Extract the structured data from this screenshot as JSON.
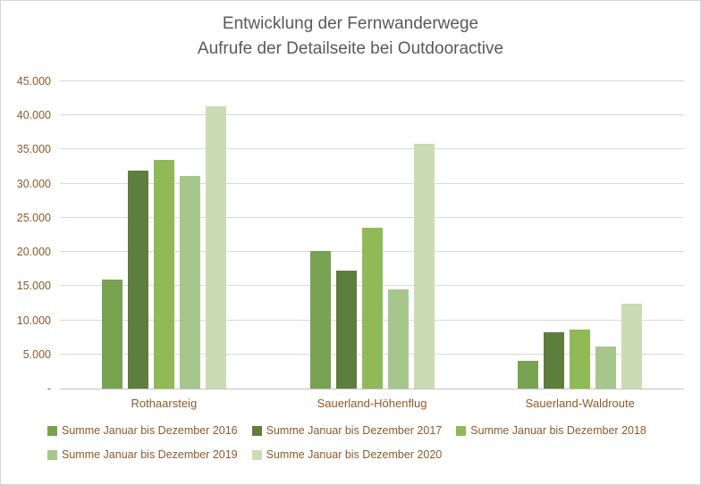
{
  "title": {
    "line1": "Entwicklung der Fernwanderwege",
    "line2": "Aufrufe der Detailseite bei Outdooractive"
  },
  "colors": {
    "title": "#595959",
    "axis_labels": "#8c5a2b",
    "gridlines": "#d9d9d9",
    "axis_line": "#bfbfbf",
    "chart_border": "#d6d6d6",
    "background": "#ffffff"
  },
  "chart_data": {
    "type": "bar",
    "title": "Entwicklung der Fernwanderwege Aufrufe der Detailseite bei Outdooractive",
    "categories": [
      "Rothaarsteig",
      "Sauerland-Höhenflug",
      "Sauerland-Waldroute"
    ],
    "series": [
      {
        "name": "Summe Januar bis Dezember 2016",
        "color": "#77a352",
        "values": [
          16000,
          20200,
          4100
        ]
      },
      {
        "name": "Summe Januar bis Dezember 2017",
        "color": "#5d7e3c",
        "values": [
          31900,
          17300,
          8300
        ]
      },
      {
        "name": "Summe Januar bis Dezember 2018",
        "color": "#8fba55",
        "values": [
          33500,
          23500,
          8700
        ]
      },
      {
        "name": "Summe Januar bis Dezember 2019",
        "color": "#a6c68c",
        "values": [
          31100,
          14500,
          6200
        ]
      },
      {
        "name": "Summe Januar bis Dezember 2020",
        "color": "#c9dcb4",
        "values": [
          41300,
          35800,
          12400
        ]
      }
    ],
    "xlabel": "",
    "ylabel": "",
    "ylim": [
      0,
      45000
    ],
    "ytick_step": 5000,
    "ytick_labels_bottom_to_top": [
      "-",
      "5.000",
      "10.000",
      "15.000",
      "20.000",
      "25.000",
      "30.000",
      "35.000",
      "40.000",
      "45.000"
    ],
    "grid": true,
    "legend_position": "bottom"
  }
}
